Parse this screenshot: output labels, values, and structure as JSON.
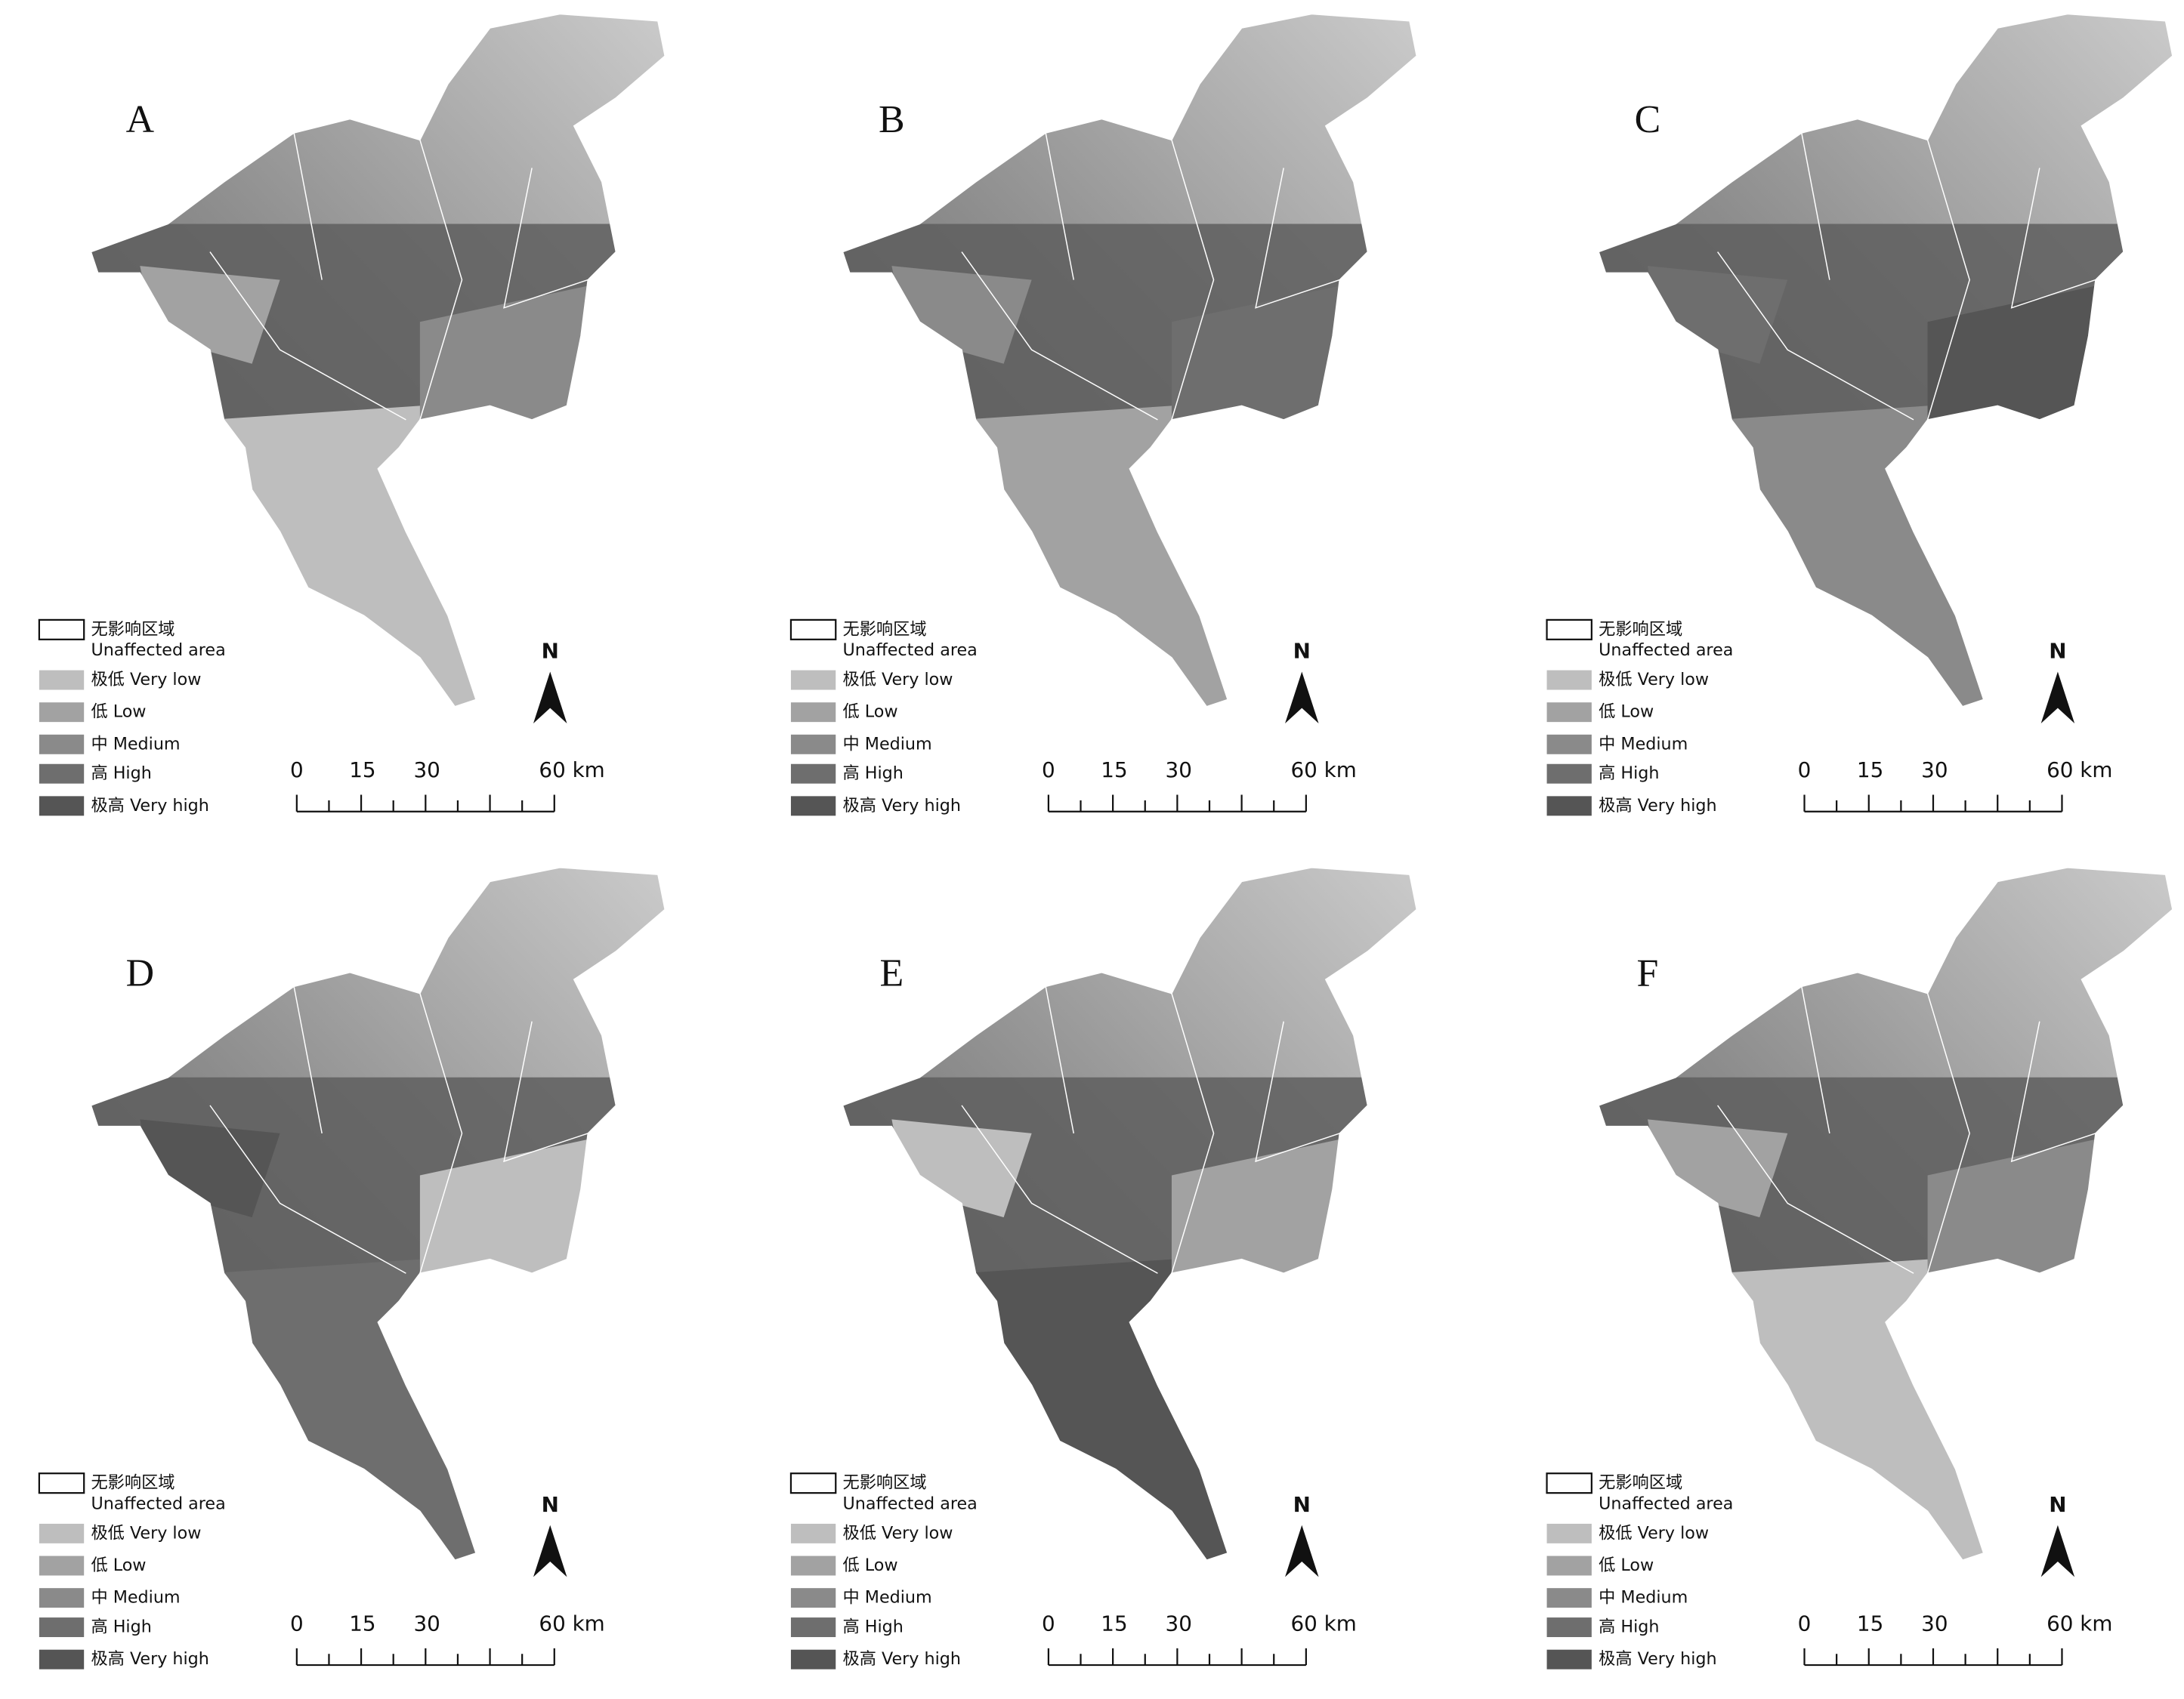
{
  "panels": [
    {
      "label": "A"
    },
    {
      "label": "B"
    },
    {
      "label": "C"
    },
    {
      "label": "D"
    },
    {
      "label": "E"
    },
    {
      "label": "F"
    }
  ],
  "legend": {
    "unaffected": "无影响区域",
    "unaffected_en": "Unaffected area",
    "classes": [
      {
        "label": "极低 Very low",
        "color": "#bebebe"
      },
      {
        "label": "低 Low",
        "color": "#a2a2a2"
      },
      {
        "label": "中 Medium",
        "color": "#8a8a8a"
      },
      {
        "label": "高 High",
        "color": "#6e6e6e"
      },
      {
        "label": "极高 Very high",
        "color": "#555555"
      }
    ]
  },
  "scale_bar": {
    "labels": [
      "0",
      "15",
      "30",
      "60 km"
    ]
  },
  "north": "N"
}
